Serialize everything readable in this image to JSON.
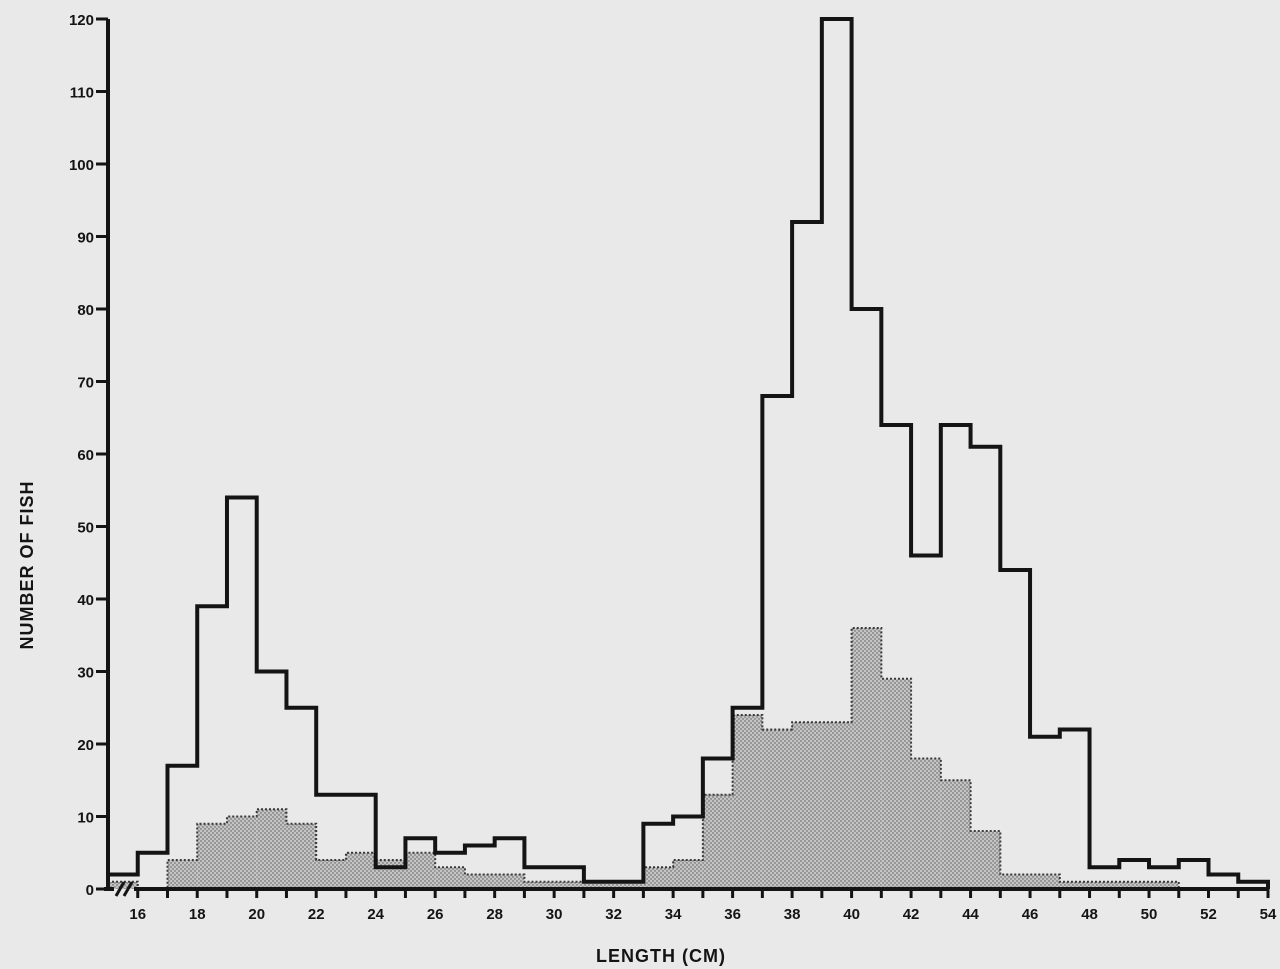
{
  "chart_data": {
    "type": "bar",
    "subtype": "histogram",
    "title": "",
    "xlabel": "LENGTH (CM)",
    "ylabel": "NUMBER OF FISH",
    "xlim": [
      15,
      54
    ],
    "ylim": [
      0,
      120
    ],
    "x_ticks": [
      16,
      18,
      20,
      22,
      24,
      26,
      28,
      30,
      32,
      34,
      36,
      38,
      40,
      42,
      44,
      46,
      48,
      50,
      52,
      54
    ],
    "y_ticks": [
      0,
      10,
      20,
      30,
      40,
      50,
      60,
      70,
      80,
      90,
      100,
      110,
      120
    ],
    "axis_break": "x-axis at origin",
    "bin_width": 1,
    "bin_starts": [
      15,
      16,
      17,
      18,
      19,
      20,
      21,
      22,
      23,
      24,
      25,
      26,
      27,
      28,
      29,
      30,
      31,
      32,
      33,
      34,
      35,
      36,
      37,
      38,
      39,
      40,
      41,
      42,
      43,
      44,
      45,
      46,
      47,
      48,
      49,
      50,
      51,
      52,
      53
    ],
    "series": [
      {
        "style": "solid outline",
        "values": [
          2,
          5,
          17,
          39,
          54,
          30,
          25,
          13,
          13,
          3,
          7,
          5,
          6,
          7,
          3,
          3,
          1,
          1,
          9,
          10,
          18,
          25,
          68,
          92,
          120,
          80,
          64,
          46,
          64,
          61,
          44,
          21,
          22,
          3,
          4,
          3,
          4,
          2,
          1
        ]
      },
      {
        "style": "stippled fill",
        "values": [
          1,
          0,
          4,
          9,
          10,
          11,
          9,
          4,
          5,
          4,
          5,
          3,
          2,
          2,
          1,
          1,
          1,
          1,
          3,
          4,
          13,
          24,
          22,
          23,
          23,
          36,
          29,
          18,
          15,
          8,
          2,
          2,
          1,
          1,
          1,
          1,
          0,
          0,
          0
        ]
      }
    ]
  },
  "colors": {
    "background": "#e9e9e9",
    "ink": "#141414",
    "stipple_fill": "#c4c4c4"
  }
}
